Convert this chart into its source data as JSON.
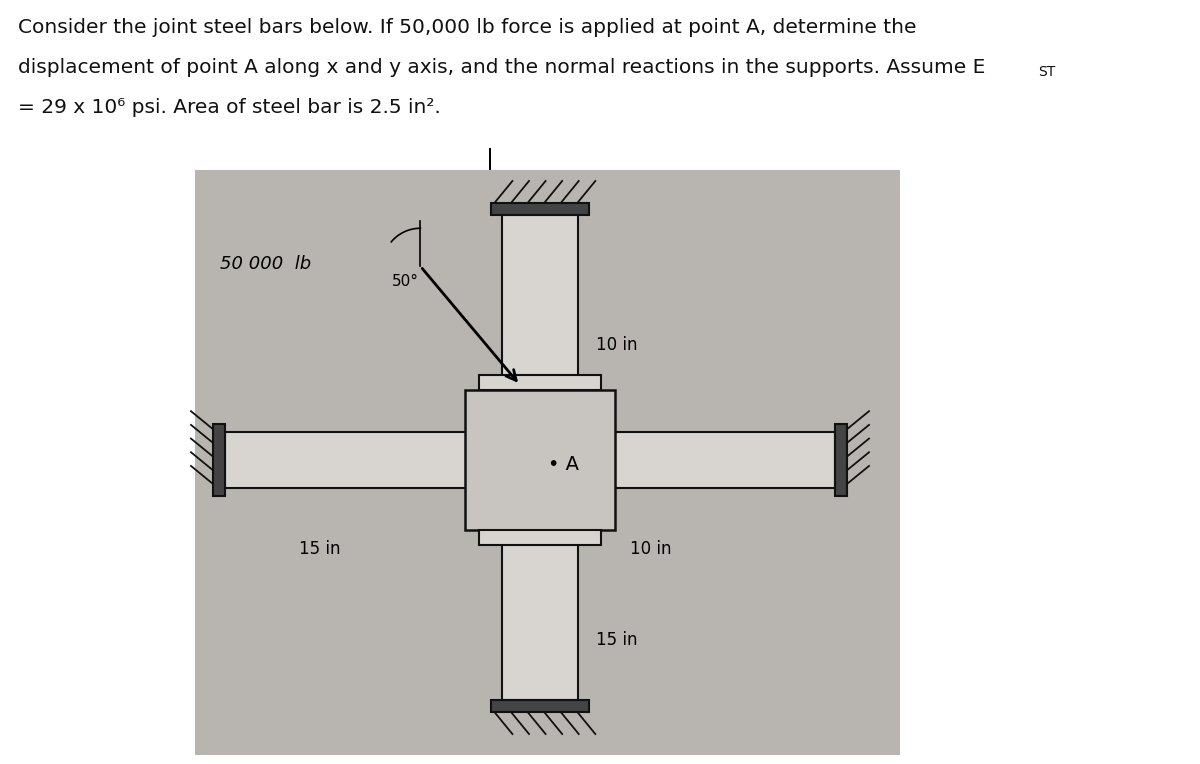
{
  "bg_color": "#ffffff",
  "diagram_bg": "#b8b4b0",
  "bar_color": "#d8d4d0",
  "joint_color": "#c8c4c0",
  "wall_color": "#222222",
  "line_color": "#111111",
  "text_color": "#111111",
  "force_label": "50 000  lb",
  "angle_label": "50°",
  "point_label": "• A",
  "dim_top": "10 in",
  "dim_right": "10 in",
  "dim_left": "15 in",
  "dim_bottom": "15 in",
  "line1": "Consider the joint steel bars below. If 50,000 lb force is applied at point A, determine the",
  "line2": "displacement of point A along x and y axis, and the normal reactions in the supports. Assume E",
  "line2_sub": "ST",
  "line3": "= 29 x 10⁶ psi. Area of steel bar is 2.5 in²."
}
